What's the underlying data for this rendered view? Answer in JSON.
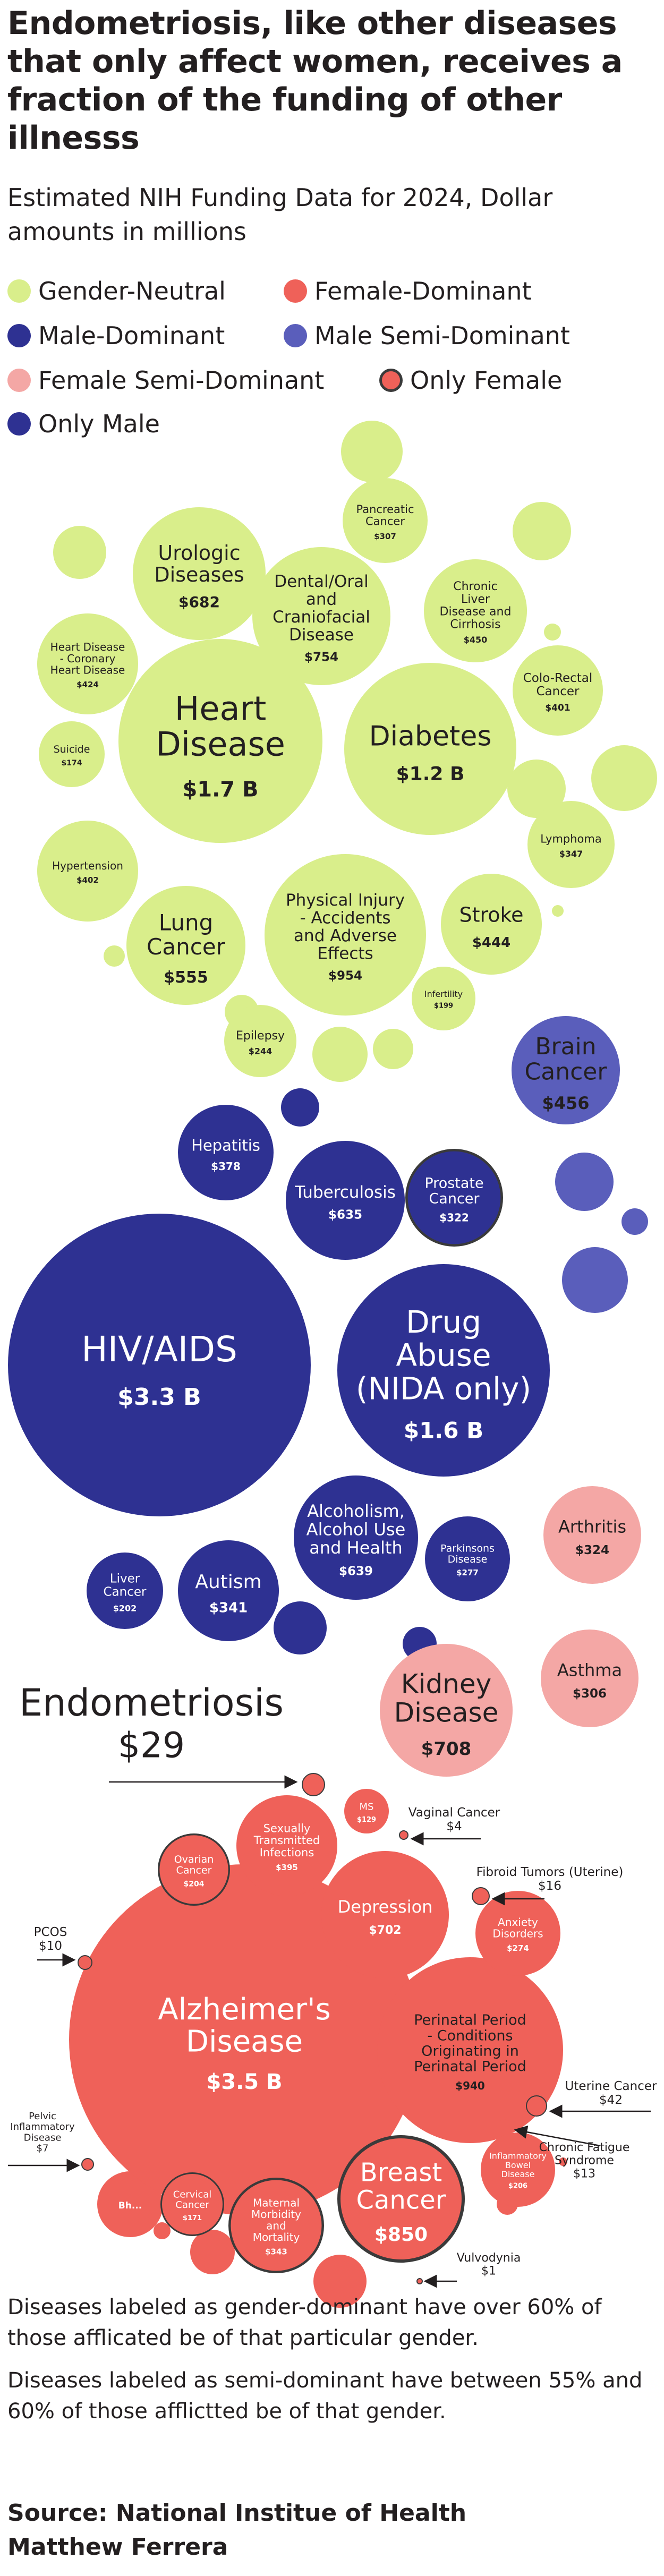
{
  "title": "Endometriosis, like other diseases that only affect women, receives a fraction of the funding of other illnesss",
  "subtitle": "Estimated NIH Funding Data for 2024, Dollar amounts in millions",
  "colors": {
    "gender_neutral": "#d9ee8b",
    "male_dominant": "#2e3192",
    "male_semi_dominant": "#5a5ebb",
    "female_semi_dominant": "#f4a7a5",
    "female": "#ef6159",
    "outline": "#3a3a3a"
  },
  "legend": [
    {
      "label": "Gender-Neutral",
      "category": "gender_neutral"
    },
    {
      "label": "Female-Dominant",
      "category": "female"
    },
    {
      "label": "Male-Dominant",
      "category": "male_dominant"
    },
    {
      "label": "Male Semi-Dominant",
      "category": "male_semi_dominant"
    },
    {
      "label": "Female Semi-Dominant",
      "category": "female_semi_dominant"
    },
    {
      "label": "Only Female",
      "category": "only_female"
    },
    {
      "label": "Only Male",
      "category": "male_dominant"
    }
  ],
  "chart_data": {
    "type": "bubble",
    "unit": "USD millions",
    "series": [
      {
        "name": "Heart Disease",
        "value": 1700,
        "value_label": "$1.7 B",
        "category": "gender_neutral"
      },
      {
        "name": "Diabetes",
        "value": 1200,
        "value_label": "$1.2 B",
        "category": "gender_neutral"
      },
      {
        "name": "Physical Injury - Accidents and Adverse Effects",
        "value": 954,
        "value_label": "$954",
        "category": "gender_neutral"
      },
      {
        "name": "Dental/Oral and Craniofacial Disease",
        "value": 754,
        "value_label": "$754",
        "category": "gender_neutral"
      },
      {
        "name": "Urologic Diseases",
        "value": 682,
        "value_label": "$682",
        "category": "gender_neutral"
      },
      {
        "name": "Lung Cancer",
        "value": 555,
        "value_label": "$555",
        "category": "gender_neutral"
      },
      {
        "name": "Stroke",
        "value": 444,
        "value_label": "$444",
        "category": "gender_neutral"
      },
      {
        "name": "Chronic Liver Disease and Cirrhosis",
        "value": 450,
        "value_label": "$450",
        "category": "gender_neutral"
      },
      {
        "name": "Heart Disease - Coronary Heart Disease",
        "value": 424,
        "value_label": "$424",
        "category": "gender_neutral"
      },
      {
        "name": "Hypertension",
        "value": 402,
        "value_label": "$402",
        "category": "gender_neutral"
      },
      {
        "name": "Colo-Rectal Cancer",
        "value": 401,
        "value_label": "$401",
        "category": "gender_neutral"
      },
      {
        "name": "Lymphoma",
        "value": 347,
        "value_label": "$347",
        "category": "gender_neutral"
      },
      {
        "name": "Pancreatic Cancer",
        "value": 307,
        "value_label": "$307",
        "category": "gender_neutral"
      },
      {
        "name": "Epilepsy",
        "value": 244,
        "value_label": "$244",
        "category": "gender_neutral"
      },
      {
        "name": "Infertility",
        "value": 199,
        "value_label": "$199",
        "category": "gender_neutral"
      },
      {
        "name": "Suicide",
        "value": 174,
        "value_label": "$174",
        "category": "gender_neutral"
      },
      {
        "name": "HIV/AIDS",
        "value": 3300,
        "value_label": "$3.3 B",
        "category": "male_dominant"
      },
      {
        "name": "Drug Abuse (NIDA only)",
        "value": 1600,
        "value_label": "$1.6 B",
        "category": "male_dominant"
      },
      {
        "name": "Alcoholism, Alcohol Use and Health",
        "value": 639,
        "value_label": "$639",
        "category": "male_dominant"
      },
      {
        "name": "Tuberculosis",
        "value": 635,
        "value_label": "$635",
        "category": "male_dominant"
      },
      {
        "name": "Hepatitis",
        "value": 378,
        "value_label": "$378",
        "category": "male_dominant"
      },
      {
        "name": "Autism",
        "value": 341,
        "value_label": "$341",
        "category": "male_dominant"
      },
      {
        "name": "Prostate Cancer",
        "value": 322,
        "value_label": "$322",
        "category": "only_male"
      },
      {
        "name": "Parkinsons Disease",
        "value": 277,
        "value_label": "$277",
        "category": "male_dominant"
      },
      {
        "name": "Liver Cancer",
        "value": 202,
        "value_label": "$202",
        "category": "male_dominant"
      },
      {
        "name": "Brain Cancer",
        "value": 456,
        "value_label": "$456",
        "category": "male_semi_dominant"
      },
      {
        "name": "Kidney Disease",
        "value": 708,
        "value_label": "$708",
        "category": "female_semi_dominant"
      },
      {
        "name": "Arthritis",
        "value": 324,
        "value_label": "$324",
        "category": "female_semi_dominant"
      },
      {
        "name": "Asthma",
        "value": 306,
        "value_label": "$306",
        "category": "female_semi_dominant"
      },
      {
        "name": "Alzheimer's Disease",
        "value": 3500,
        "value_label": "$3.5 B",
        "category": "female"
      },
      {
        "name": "Perinatal Period - Conditions Originating in Perinatal Period",
        "value": 940,
        "value_label": "$940",
        "category": "female"
      },
      {
        "name": "Breast Cancer",
        "value": 850,
        "value_label": "$850",
        "category": "only_female"
      },
      {
        "name": "Depression",
        "value": 702,
        "value_label": "$702",
        "category": "female"
      },
      {
        "name": "Sexually Transmitted Infections",
        "value": 395,
        "value_label": "$395",
        "category": "female"
      },
      {
        "name": "Maternal Morbidity and Mortality",
        "value": 343,
        "value_label": "$343",
        "category": "only_female"
      },
      {
        "name": "Anxiety Disorders",
        "value": 274,
        "value_label": "$274",
        "category": "female"
      },
      {
        "name": "Inflammatory Bowel Disease",
        "value": 206,
        "value_label": "$206",
        "category": "female"
      },
      {
        "name": "Ovarian Cancer",
        "value": 204,
        "value_label": "$204",
        "category": "only_female"
      },
      {
        "name": "Cervical Cancer",
        "value": 171,
        "value_label": "$171",
        "category": "only_female"
      },
      {
        "name": "MS",
        "value": 129,
        "value_label": "$129",
        "category": "female"
      },
      {
        "name": "Endometriosis",
        "value": 29,
        "value_label": "$29",
        "category": "only_female"
      },
      {
        "name": "Uterine Cancer",
        "value": 42,
        "value_label": "$42",
        "category": "only_female"
      },
      {
        "name": "Fibroid Tumors (Uterine)",
        "value": 16,
        "value_label": "$16",
        "category": "only_female"
      },
      {
        "name": "Chronic Fatigue Syndrome",
        "value": 13,
        "value_label": "$13",
        "category": "female"
      },
      {
        "name": "PCOS",
        "value": 10,
        "value_label": "$10",
        "category": "only_female"
      },
      {
        "name": "Pelvic Inflammatory Disease",
        "value": 7,
        "value_label": "$7",
        "category": "only_female"
      },
      {
        "name": "Vaginal Cancer",
        "value": 4,
        "value_label": "$4",
        "category": "only_female"
      },
      {
        "name": "Vulvodynia",
        "value": 1,
        "value_label": "$1",
        "category": "only_female"
      }
    ],
    "partial_label": "Bh..."
  },
  "notes": [
    "Diseases labeled as gender-dominant have over 60% of those afflicated be of that particular gender.",
    "Diseases labeled as semi-dominant have between 55% and 60% of those afflictted be of that gender."
  ],
  "source": "Source: National Institue of Health",
  "author": "Matthew Ferrera"
}
